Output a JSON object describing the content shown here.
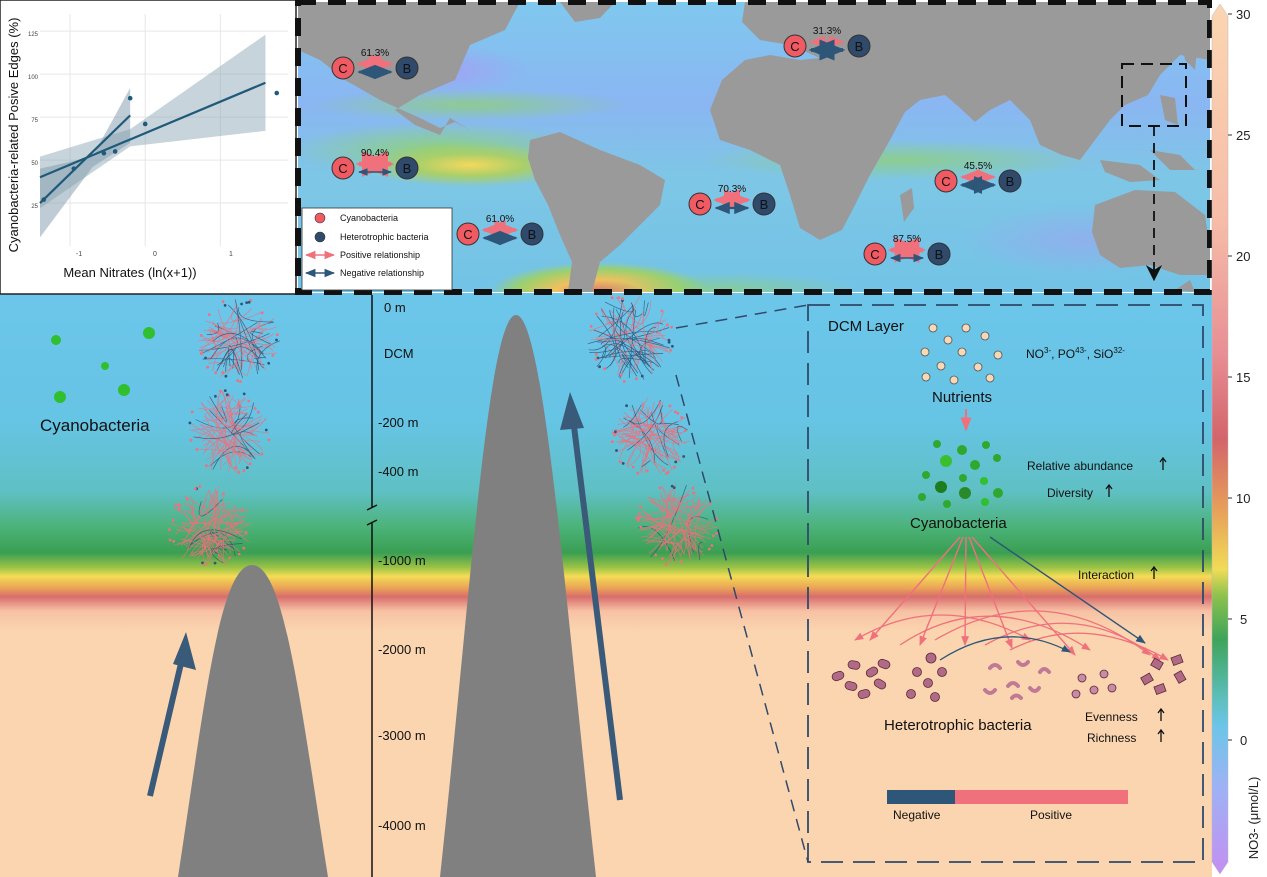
{
  "scatter": {
    "ylabel": "Cyanobacteria-related Posive Edges (%)",
    "xlabel": "Mean Nitrates (ln(x+1))",
    "xticks": [
      "-1",
      "0",
      "1"
    ],
    "yticks": [
      "25",
      "50",
      "75",
      "100",
      "125"
    ]
  },
  "chart_data": {
    "type": "scatter",
    "xlabel": "Mean Nitrates (ln(x+1))",
    "ylabel": "Cyanobacteria-related Posive Edges (%)",
    "xlim": [
      -1.4,
      1.9
    ],
    "ylim": [
      0,
      135
    ],
    "grid": true,
    "series": [
      {
        "x": [
          -1.35,
          -0.95,
          -0.55,
          -0.4,
          -0.2,
          0.0,
          1.75
        ],
        "y": [
          27,
          45,
          54,
          55,
          86,
          71,
          89
        ]
      }
    ],
    "fits": [
      {
        "from": [
          -1.4,
          40
        ],
        "to": [
          1.6,
          95
        ]
      },
      {
        "from": [
          -1.4,
          25
        ],
        "to": [
          -0.2,
          76
        ]
      }
    ]
  },
  "map": {
    "legend": {
      "cyano": "Cyanobacteria",
      "hetero": "Heterotrophic bacteria",
      "pos": "Positive relationship",
      "neg": "Negative relationship"
    },
    "pairs": [
      {
        "pct": "61.3%",
        "c": "C",
        "b": "B"
      },
      {
        "pct": "90.4%",
        "c": "C",
        "b": "B"
      },
      {
        "pct": "61.0%",
        "c": "C",
        "b": "B"
      },
      {
        "pct": "70.3%",
        "c": "C",
        "b": "B"
      },
      {
        "pct": "31.3%",
        "c": "C",
        "b": "B"
      },
      {
        "pct": "45.5%",
        "c": "C",
        "b": "B"
      },
      {
        "pct": "87.5%",
        "c": "C",
        "b": "B"
      }
    ]
  },
  "colorbar": {
    "label": "NO3- (μmol/L)",
    "ticks": [
      "30",
      "25",
      "20",
      "15",
      "10",
      "5",
      "0"
    ]
  },
  "depth": {
    "labels": [
      "0 m",
      "DCM",
      "-200 m",
      "-400 m",
      "-1000 m",
      "-2000 m",
      "-3000 m",
      "-4000 m"
    ]
  },
  "left_panel": {
    "label": "Cyanobacteria"
  },
  "dcm": {
    "title": "DCM Layer",
    "nutrients_formula": [
      "NO",
      "3",
      "-",
      ", PO",
      "4",
      "3-",
      ", SiO",
      "3",
      "2-"
    ],
    "nutrients": "Nutrients",
    "rel_abundance": "Relative abundance",
    "diversity": "Diversity",
    "cyano": "Cyanobacteria",
    "interaction": "Interaction",
    "hetero": "Heterotrophic bacteria",
    "evenness": "Evenness",
    "richness": "Richness",
    "neg": "Negative",
    "pos": "Positive"
  },
  "colors": {
    "cyano": "#f05a63",
    "hetero": "#2f4a6b",
    "positive": "#f0707b",
    "negative": "#2d5679",
    "land": "#9a9a9a",
    "surface": "#6cc5e8",
    "deep": "#fbd5b0"
  }
}
